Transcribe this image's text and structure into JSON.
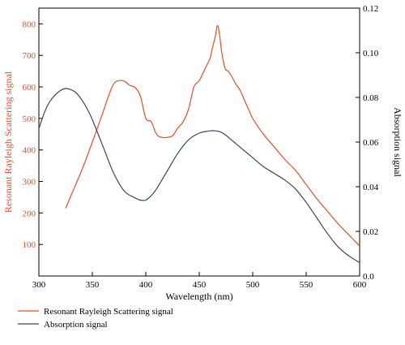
{
  "chart_data": {
    "type": "line",
    "xlabel": "Wavelength (nm)",
    "ylabel_left": "Resonant Rayleigh Scattering signal",
    "ylabel_right": "Absorption signal",
    "xlim": [
      300,
      600
    ],
    "ylim_left": [
      0,
      850
    ],
    "ylim_right": [
      0,
      0.12
    ],
    "x_ticks": [
      "300",
      "350",
      "400",
      "450",
      "500",
      "550",
      "600"
    ],
    "y_left_ticks": [
      "100",
      "200",
      "300",
      "400",
      "500",
      "600",
      "700",
      "800"
    ],
    "y_right_ticks": [
      "0.0",
      "0.02",
      "0.04",
      "0.06",
      "0.08",
      "0.10",
      "0.12"
    ],
    "grid": false,
    "legend_position": "bottom-left",
    "series": [
      {
        "name": "Resonant Rayleigh Scattering signal",
        "axis": "left",
        "color": "#e0502a",
        "x": [
          325,
          330,
          340,
          350,
          360,
          365,
          370,
          375,
          380,
          385,
          390,
          395,
          400,
          405,
          410,
          415,
          420,
          425,
          430,
          435,
          440,
          445,
          450,
          455,
          460,
          462,
          465,
          467,
          469,
          471,
          474,
          477,
          480,
          484,
          488,
          492,
          496,
          500,
          510,
          520,
          530,
          540,
          550,
          560,
          570,
          580,
          590,
          600
        ],
        "y": [
          215,
          255,
          335,
          425,
          520,
          570,
          610,
          620,
          618,
          605,
          598,
          570,
          500,
          490,
          450,
          440,
          440,
          445,
          470,
          490,
          530,
          600,
          620,
          655,
          690,
          720,
          760,
          795,
          765,
          710,
          660,
          650,
          635,
          610,
          590,
          560,
          530,
          500,
          450,
          410,
          370,
          335,
          290,
          245,
          205,
          165,
          130,
          95
        ]
      },
      {
        "name": "Absorption signal",
        "axis": "right",
        "color": "#3c4658",
        "x": [
          300,
          305,
          310,
          315,
          320,
          325,
          330,
          335,
          340,
          345,
          350,
          360,
          370,
          380,
          390,
          395,
          400,
          405,
          410,
          420,
          430,
          440,
          450,
          460,
          465,
          470,
          475,
          480,
          490,
          500,
          510,
          520,
          530,
          540,
          550,
          560,
          570,
          580,
          590,
          600
        ],
        "y": [
          0.066,
          0.073,
          0.078,
          0.081,
          0.083,
          0.084,
          0.0835,
          0.082,
          0.079,
          0.075,
          0.07,
          0.058,
          0.046,
          0.038,
          0.035,
          0.034,
          0.034,
          0.036,
          0.039,
          0.047,
          0.055,
          0.061,
          0.064,
          0.065,
          0.065,
          0.0645,
          0.063,
          0.061,
          0.057,
          0.053,
          0.049,
          0.046,
          0.043,
          0.039,
          0.033,
          0.026,
          0.019,
          0.013,
          0.009,
          0.006
        ]
      }
    ]
  },
  "colors": {
    "left_axis": "#e0502a",
    "right_axis": "#000000",
    "frame": "#000000"
  }
}
